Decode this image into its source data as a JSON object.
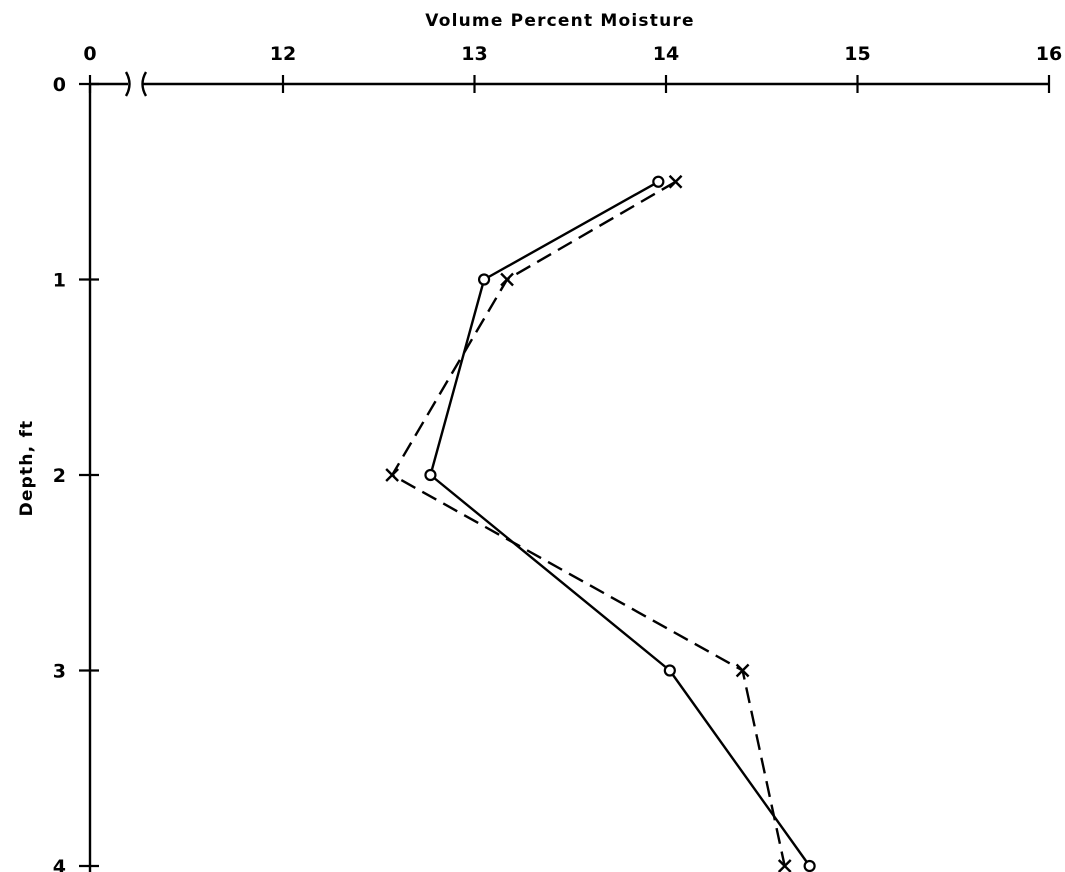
{
  "chart_data": {
    "type": "line",
    "title": "",
    "xlabel": "Volume Percent Moisture",
    "ylabel": "Depth, ft",
    "x_axis_position": "top",
    "y_axis_inverted": true,
    "x_axis_break": "between 0 and 11.3",
    "xlim": [
      11,
      16
    ],
    "ylim": [
      0,
      4
    ],
    "x_ticks": [
      0,
      12,
      13,
      14,
      15,
      16
    ],
    "x_tick_labels": [
      "0",
      "12",
      "13",
      "14",
      "15",
      "16"
    ],
    "y_ticks": [
      0,
      1,
      2,
      3,
      4
    ],
    "y_tick_labels": [
      "0",
      "1",
      "2",
      "3",
      "4"
    ],
    "grid": false,
    "legend": "none",
    "series": [
      {
        "marker": "circle",
        "line_style": "solid",
        "points": [
          {
            "x": 13.96,
            "y": 0.5
          },
          {
            "x": 13.05,
            "y": 1.0
          },
          {
            "x": 12.77,
            "y": 2.0
          },
          {
            "x": 14.02,
            "y": 3.0
          },
          {
            "x": 14.75,
            "y": 4.0
          }
        ]
      },
      {
        "marker": "x",
        "line_style": "dashed",
        "points": [
          {
            "x": 14.05,
            "y": 0.5
          },
          {
            "x": 13.17,
            "y": 1.0
          },
          {
            "x": 12.57,
            "y": 2.0
          },
          {
            "x": 14.4,
            "y": 3.0
          },
          {
            "x": 14.62,
            "y": 4.0
          }
        ]
      }
    ]
  }
}
